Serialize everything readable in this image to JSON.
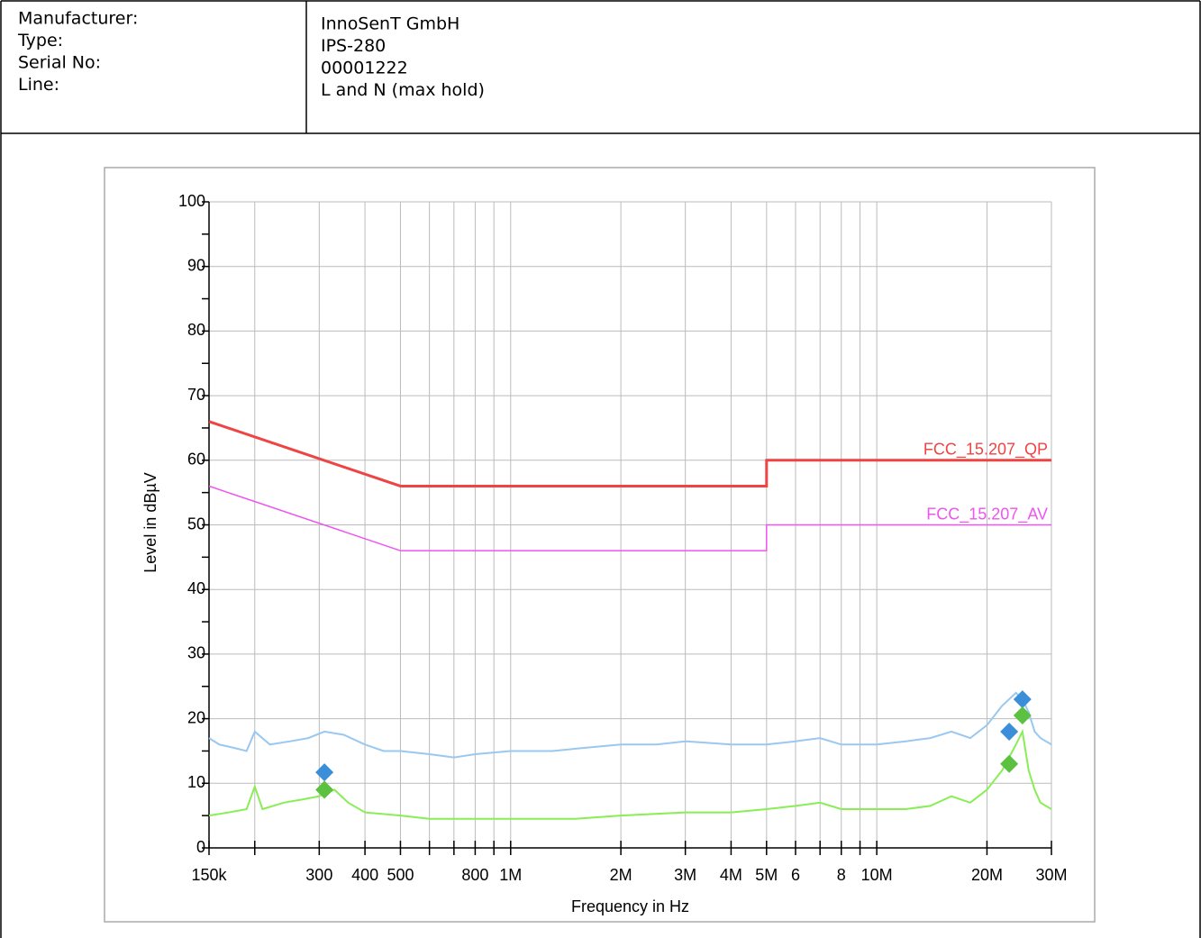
{
  "header": {
    "rows": [
      [
        "Manufacturer:",
        "InnoSenT GmbH"
      ],
      [
        "Type:",
        "IPS-280"
      ],
      [
        "Serial No:",
        "00001222"
      ],
      [
        "Line:",
        "L and N (max hold)"
      ]
    ]
  },
  "chart_data": {
    "type": "line",
    "xlabel": "Frequency in Hz",
    "ylabel": "Level in dBµV",
    "xscale": "log",
    "xlim": [
      150000,
      30000000
    ],
    "ylim": [
      0,
      100
    ],
    "xticks": [
      {
        "value": 150000,
        "label": "150k"
      },
      300,
      400,
      500,
      800,
      {
        "value": 1000000,
        "label": "1M"
      },
      {
        "value": 2000000,
        "label": "2M"
      },
      {
        "value": 3000000,
        "label": "3M"
      },
      {
        "value": 4000000,
        "label": "4M"
      },
      {
        "value": 5000000,
        "label": "5M"
      },
      6,
      8,
      {
        "value": 10000000,
        "label": "10M"
      },
      {
        "value": 20000000,
        "label": "20M"
      },
      {
        "value": 30000000,
        "label": "30M"
      }
    ],
    "xtick_positions": [
      150000,
      300000,
      400000,
      500000,
      800000,
      1000000,
      2000000,
      3000000,
      4000000,
      5000000,
      6000000,
      8000000,
      10000000,
      20000000,
      30000000
    ],
    "x_minor_ticks": [
      200000,
      600000,
      700000,
      900000,
      7000000,
      9000000
    ],
    "yticks": [
      0,
      10,
      20,
      30,
      40,
      50,
      60,
      70,
      80,
      90,
      100
    ],
    "y_minor_ticks": [
      5,
      15,
      25,
      35,
      45,
      55,
      65,
      75,
      85,
      95
    ],
    "grid": true,
    "series": [
      {
        "name": "FCC_15.207_QP",
        "color": "#ee4444",
        "line_width": 3,
        "x": [
          150000,
          500000,
          5000000,
          5000000,
          30000000
        ],
        "values": [
          66,
          56,
          56,
          60,
          60
        ]
      },
      {
        "name": "FCC_15.207_AV",
        "color": "#ee55ee",
        "line_width": 1.5,
        "x": [
          150000,
          500000,
          5000000,
          5000000,
          30000000
        ],
        "values": [
          56,
          46,
          46,
          50,
          50
        ]
      },
      {
        "color": "#99c8f0",
        "line_width": 2,
        "x": [
          150000,
          160000,
          175000,
          190000,
          200000,
          220000,
          250000,
          280000,
          310000,
          350000,
          400000,
          450000,
          500000,
          600000,
          700000,
          800000,
          1000000,
          1300000,
          1600000,
          2000000,
          2500000,
          3000000,
          4000000,
          5000000,
          6000000,
          7000000,
          8000000,
          10000000,
          12000000,
          14000000,
          16000000,
          18000000,
          20000000,
          22000000,
          24000000,
          25000000,
          26000000,
          27000000,
          28000000,
          30000000
        ],
        "values": [
          17,
          16,
          15.5,
          15,
          18,
          16,
          16.5,
          17,
          18,
          17.5,
          16,
          15,
          15,
          14.5,
          14,
          14.5,
          15,
          15,
          15.5,
          16,
          16,
          16.5,
          16,
          16,
          16.5,
          17,
          16,
          16,
          16.5,
          17,
          18,
          17,
          19,
          22,
          24,
          23,
          21,
          18,
          17,
          16
        ]
      },
      {
        "color": "#88ee55",
        "line_width": 2,
        "x": [
          150000,
          170000,
          190000,
          200000,
          210000,
          240000,
          270000,
          300000,
          330000,
          360000,
          400000,
          500000,
          600000,
          800000,
          1000000,
          1500000,
          2000000,
          3000000,
          4000000,
          5000000,
          6000000,
          7000000,
          8000000,
          10000000,
          12000000,
          14000000,
          16000000,
          18000000,
          20000000,
          22000000,
          24000000,
          25000000,
          26000000,
          27000000,
          28000000,
          30000000
        ],
        "values": [
          5,
          5.5,
          6,
          9.5,
          6,
          7,
          7.5,
          8,
          9,
          7,
          5.5,
          5,
          4.5,
          4.5,
          4.5,
          4.5,
          5,
          5.5,
          5.5,
          6,
          6.5,
          7,
          6,
          6,
          6,
          6.5,
          8,
          7,
          9,
          12,
          16,
          18,
          12,
          9,
          7,
          6
        ]
      }
    ],
    "markers": [
      {
        "type": "scatter",
        "color": "#3a8fd8",
        "x": [
          310000,
          23000000,
          25000000
        ],
        "values": [
          11.7,
          18,
          23
        ]
      },
      {
        "type": "scatter",
        "color": "#5cc040",
        "x": [
          310000,
          23000000,
          25000000
        ],
        "values": [
          9,
          13,
          20.5
        ]
      }
    ]
  }
}
